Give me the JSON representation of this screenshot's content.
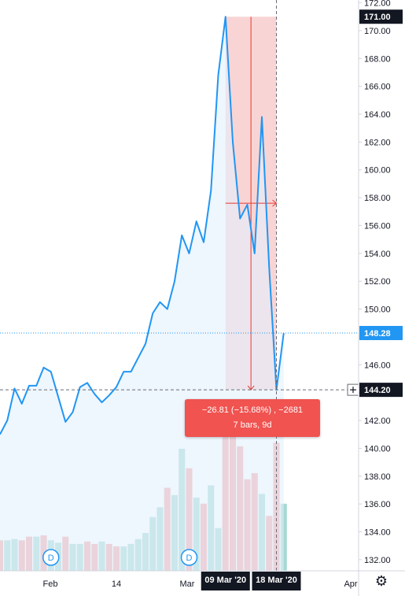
{
  "chart_data": {
    "type": "line",
    "price_axis": {
      "ticks": [
        132,
        134,
        136,
        138,
        140,
        142,
        144,
        146,
        148,
        150,
        152,
        154,
        156,
        158,
        160,
        162,
        164,
        166,
        168,
        170,
        172
      ],
      "ylim": [
        131.2,
        172.2
      ]
    },
    "time_axis": {
      "labels": [
        "Feb",
        "14",
        "Mar",
        "Apr"
      ]
    },
    "series": [
      {
        "color": "#2196f3",
        "values": [
          141.0,
          142.0,
          144.3,
          143.2,
          144.5,
          144.5,
          145.8,
          145.5,
          143.7,
          141.9,
          142.6,
          144.4,
          144.7,
          143.9,
          143.3,
          143.8,
          144.4,
          145.5,
          145.5,
          146.5,
          147.5,
          149.7,
          150.5,
          150.0,
          152.0,
          155.3,
          154.0,
          156.3,
          154.8,
          158.5,
          166.8,
          171.0,
          162.0,
          156.5,
          157.5,
          154.0,
          163.8,
          153.0,
          144.2,
          148.28
        ]
      }
    ],
    "volume": {
      "values": [
        25,
        25,
        26,
        25,
        28,
        28,
        29,
        25,
        23,
        28,
        22,
        22,
        24,
        22,
        24,
        22,
        20,
        20,
        22,
        26,
        31,
        44,
        52,
        68,
        62,
        100,
        84,
        60,
        55,
        70,
        35,
        120,
        112,
        102,
        75,
        80,
        63,
        45,
        105,
        55
      ],
      "colors": [
        "#f5a8a6",
        "#a5d9d2",
        "#a5d9d2",
        "#f5a8a6",
        "#f5a8a6",
        "#a5d9d2",
        "#f5a8a6",
        "#a5d9d2",
        "#a5d9d2",
        "#f5a8a6",
        "#a5d9d2",
        "#a5d9d2",
        "#f5a8a6",
        "#f5a8a6",
        "#a5d9d2",
        "#f5a8a6",
        "#f5a8a6",
        "#a5d9d2",
        "#a5d9d2",
        "#a5d9d2",
        "#a5d9d2",
        "#a5d9d2",
        "#a5d9d2",
        "#f5a8a6",
        "#a5d9d2",
        "#a5d9d2",
        "#f5a8a6",
        "#a5d9d2",
        "#f5a8a6",
        "#a5d9d2",
        "#a5d9d2",
        "#f5a8a6",
        "#f5a8a6",
        "#f5a8a6",
        "#f5a8a6",
        "#f5a8a6",
        "#a5d9d2",
        "#f5a8a6",
        "#f5a8a6",
        "#a5d9d2"
      ]
    },
    "last_price": {
      "value": 148.28,
      "label": "148.28",
      "color": "#2196f3"
    },
    "crosshair_price": {
      "value": 144.2,
      "label": "144.20"
    },
    "high_label": {
      "value": 171.0,
      "label": "171.00"
    },
    "measure": {
      "from_date": "09 Mar '20",
      "to_date": "18 Mar '20",
      "from_price": 171.0,
      "to_price": 144.2,
      "line1": "−26.81 (−15.68%) , −2681",
      "line2": "7 bars, 9d"
    },
    "dividend_markers": [
      {
        "label": "D"
      },
      {
        "label": "D"
      }
    ]
  },
  "colors": {
    "line": "#2196f3",
    "fill": "#e3f0fd",
    "measure_fill": "#f7c6c5",
    "measure_line": "#e53935",
    "up_volume": "#a5d9d2",
    "down_volume": "#f5a8a6"
  },
  "settings_icon": "gear-icon"
}
